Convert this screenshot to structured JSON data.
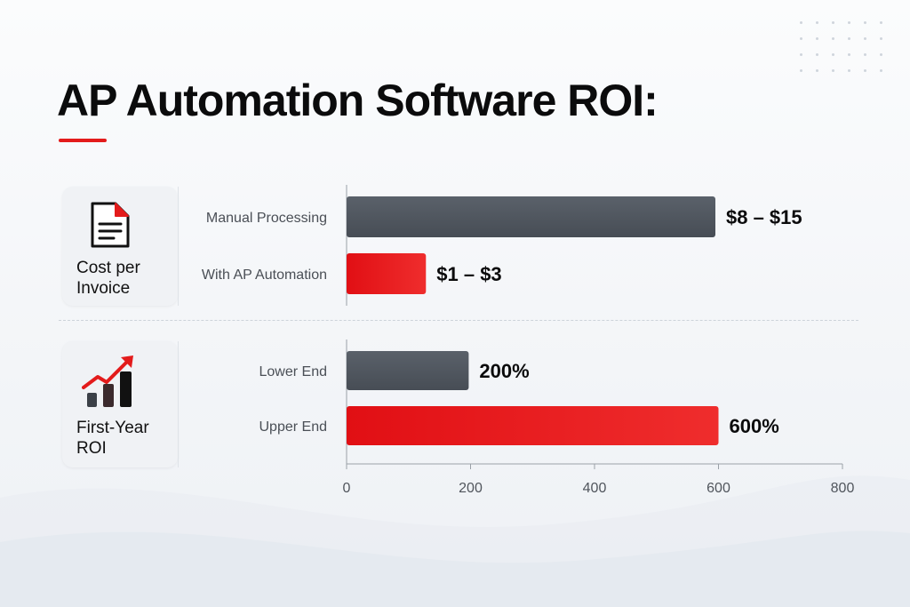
{
  "title": "AP Automation Software ROI:",
  "colors": {
    "accent": "#e31b1b",
    "bar_dark": "#474d55",
    "bar_red": "#e31b1b"
  },
  "cards": [
    {
      "label": "Cost per\nInvoice",
      "icon": "document-icon"
    },
    {
      "label": "First-Year\nROI",
      "icon": "growth-chart-icon"
    }
  ],
  "chart_data": {
    "type": "bar",
    "orientation": "horizontal",
    "xlim": [
      0,
      800
    ],
    "xticks": [
      "0",
      "200",
      "400",
      "600",
      "800"
    ],
    "groups": [
      {
        "name": "Cost per Invoice",
        "bars": [
          {
            "category": "Manual Processing",
            "value": 595,
            "label": "$8 – $15",
            "color": "dark"
          },
          {
            "category": "With AP Automation",
            "value": 128,
            "label": "$1 – $3",
            "color": "red"
          }
        ]
      },
      {
        "name": "First-Year ROI",
        "bars": [
          {
            "category": "Lower End",
            "value": 197,
            "label": "200%",
            "color": "dark"
          },
          {
            "category": "Upper End",
            "value": 600,
            "label": "600%",
            "color": "red"
          }
        ]
      }
    ]
  }
}
